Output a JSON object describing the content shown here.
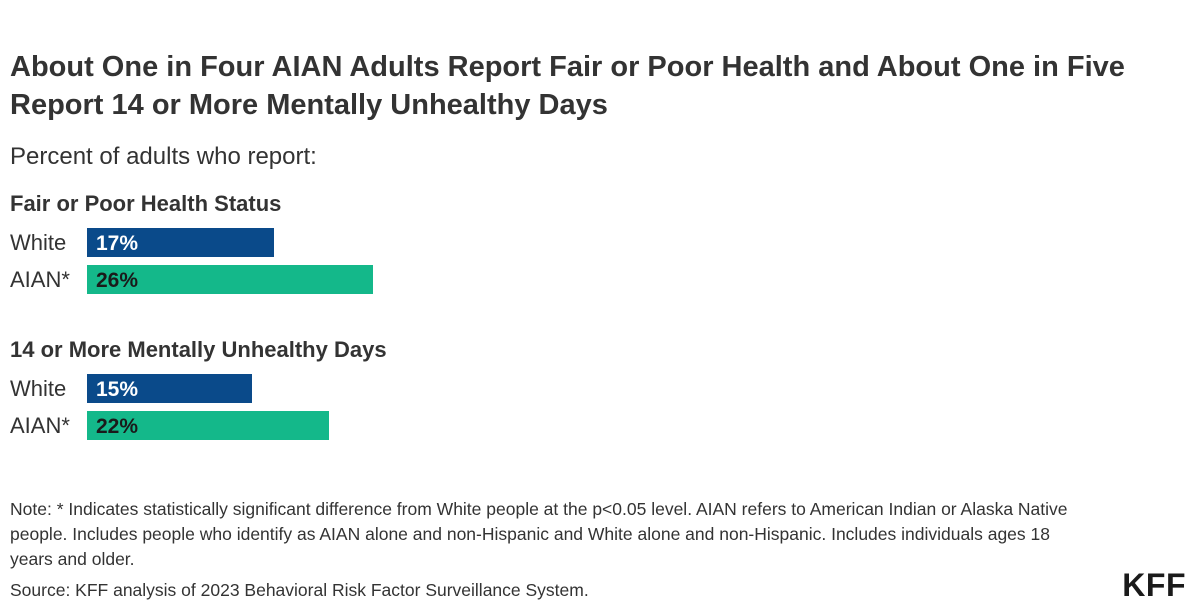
{
  "title": "About One in Four AIAN Adults Report Fair or Poor Health and About One in Five Report 14 or More Mentally Unhealthy Days",
  "subtitle": "Percent of adults who report:",
  "note": "Note: * Indicates statistically significant difference from White people at the p<0.05 level. AIAN refers to American Indian or Alaska Native people. Includes people who identify as AIAN alone and non-Hispanic and White alone and non-Hispanic. Includes individuals ages 18 years and older.",
  "source": "Source: KFF analysis of 2023 Behavioral Risk Factor Surveillance System.",
  "logo": "KFF",
  "colors": {
    "white_series": "#0a4a8a",
    "aian_series": "#14b88a",
    "white_label_text": "#ffffff",
    "aian_label_text": "#1a1a1a",
    "text": "#333333"
  },
  "chart_data": {
    "type": "bar",
    "orientation": "horizontal",
    "title": "About One in Four AIAN Adults Report Fair or Poor Health and About One in Five Report 14 or More Mentally Unhealthy Days",
    "subtitle": "Percent of adults who report:",
    "unit": "%",
    "categories": [
      "White",
      "AIAN*"
    ],
    "xlim": [
      0,
      100
    ],
    "grid": false,
    "legend": "none",
    "panels": [
      {
        "name": "Fair or Poor Health Status",
        "values": [
          17,
          26
        ],
        "labels": [
          "17%",
          "26%"
        ]
      },
      {
        "name": "14 or More Mentally Unhealthy Days",
        "values": [
          15,
          22
        ],
        "labels": [
          "15%",
          "22%"
        ]
      }
    ]
  }
}
